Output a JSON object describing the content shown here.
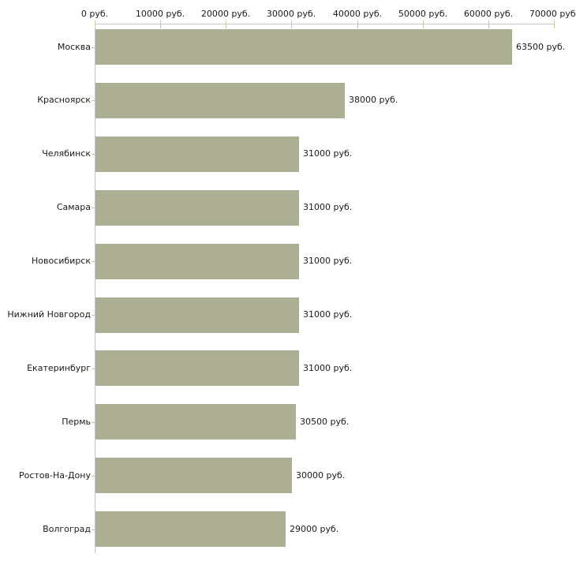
{
  "chart_data": {
    "type": "bar",
    "orientation": "horizontal",
    "unit": "руб.",
    "categories": [
      "Москва",
      "Красноярск",
      "Челябинск",
      "Самара",
      "Новосибирск",
      "Нижний Новгород",
      "Екатеринбург",
      "Пермь",
      "Ростов-На-Дону",
      "Волгоград"
    ],
    "values": [
      63500,
      38000,
      31000,
      31000,
      31000,
      31000,
      31000,
      30500,
      30000,
      29000
    ],
    "value_labels": [
      "63500 руб.",
      "38000 руб.",
      "31000 руб.",
      "31000 руб.",
      "31000 руб.",
      "31000 руб.",
      "31000 руб.",
      "30500 руб.",
      "30000 руб.",
      "29000 руб."
    ],
    "x_ticks": [
      0,
      10000,
      20000,
      30000,
      40000,
      50000,
      60000,
      70000
    ],
    "x_tick_labels": [
      "0 руб.",
      "10000 руб.",
      "20000 руб.",
      "30000 руб.",
      "40000 руб.",
      "50000 руб.",
      "60000 руб.",
      "70000 руб."
    ],
    "xlim": [
      0,
      70000
    ],
    "axis_position": "top",
    "grid": false,
    "legend": null,
    "title": "",
    "colors": {
      "bar": "#acaf94",
      "axis_line": "#c8c8c8",
      "tick": "#c9c6a4",
      "text": "#1a1a1a",
      "background": "#ffffff"
    }
  }
}
